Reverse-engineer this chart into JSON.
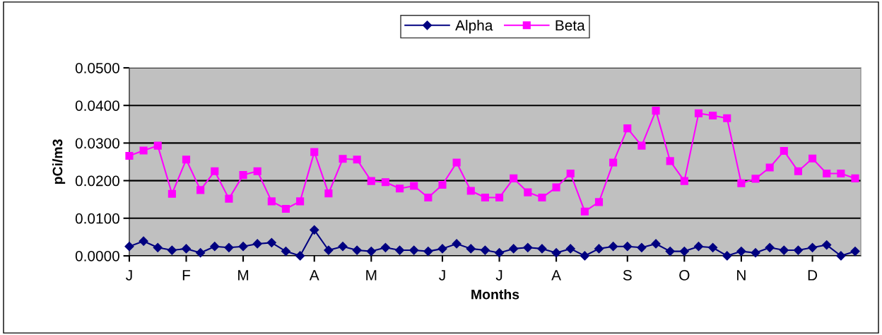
{
  "chart_data": {
    "type": "line",
    "xlabel": "Months",
    "ylabel": "pCi/m3",
    "categories": [
      "J",
      null,
      null,
      null,
      "F",
      null,
      null,
      null,
      "M",
      null,
      null,
      null,
      null,
      "A",
      null,
      null,
      null,
      "M",
      null,
      null,
      null,
      null,
      "J",
      null,
      null,
      null,
      "J",
      null,
      null,
      null,
      "A",
      null,
      null,
      null,
      null,
      "S",
      null,
      null,
      null,
      "O",
      null,
      null,
      null,
      "N",
      null,
      null,
      null,
      null,
      "D",
      null,
      null,
      null
    ],
    "ylim": [
      0,
      0.05
    ],
    "yticks": [
      {
        "value": 0,
        "label": "0.0000"
      },
      {
        "value": 0.01,
        "label": "0.0100"
      },
      {
        "value": 0.02,
        "label": "0.0200"
      },
      {
        "value": 0.03,
        "label": "0.0300"
      },
      {
        "value": 0.04,
        "label": "0.0400"
      },
      {
        "value": 0.05,
        "label": "0.0500"
      }
    ],
    "grid": "y",
    "legend": "top",
    "series": [
      {
        "name": "Alpha",
        "color": "#000080",
        "marker": "diamond",
        "values": [
          0.0025,
          0.0039,
          0.0022,
          0.0015,
          0.0019,
          0.0008,
          0.0025,
          0.0022,
          0.0025,
          0.0032,
          0.0035,
          0.0012,
          0.0,
          0.0069,
          0.0015,
          0.0025,
          0.0015,
          0.0012,
          0.0022,
          0.0015,
          0.0015,
          0.0012,
          0.0019,
          0.0032,
          0.0019,
          0.0015,
          0.0008,
          0.0019,
          0.0022,
          0.0019,
          0.0008,
          0.0019,
          0.0,
          0.0019,
          0.0025,
          0.0025,
          0.0022,
          0.0032,
          0.0012,
          0.0012,
          0.0025,
          0.0022,
          0.0,
          0.0012,
          0.0008,
          0.0022,
          0.0015,
          0.0015,
          0.0022,
          0.0029,
          0.0,
          0.0012
        ]
      },
      {
        "name": "Beta",
        "color": "#ff00ff",
        "marker": "square",
        "values": [
          0.0266,
          0.028,
          0.0293,
          0.0165,
          0.0256,
          0.0175,
          0.0225,
          0.0152,
          0.0215,
          0.0225,
          0.0145,
          0.0125,
          0.0145,
          0.0276,
          0.0166,
          0.0258,
          0.0256,
          0.0199,
          0.0196,
          0.0179,
          0.0186,
          0.0155,
          0.0189,
          0.0248,
          0.0173,
          0.0155,
          0.0155,
          0.0206,
          0.0169,
          0.0155,
          0.0182,
          0.0219,
          0.0118,
          0.0143,
          0.0248,
          0.0339,
          0.0293,
          0.0386,
          0.0252,
          0.0199,
          0.0379,
          0.0373,
          0.0366,
          0.0193,
          0.0205,
          0.0235,
          0.0279,
          0.0225,
          0.0259,
          0.0219,
          0.0219,
          0.0206
        ]
      }
    ]
  }
}
